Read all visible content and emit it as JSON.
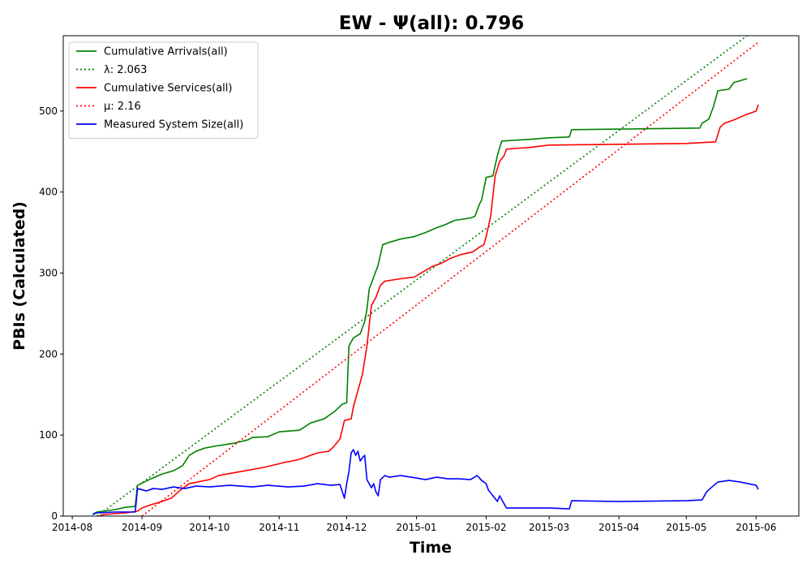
{
  "chart_data": {
    "type": "line",
    "title": "EW -  Ψ(all): 0.796",
    "xlabel": "Time",
    "ylabel": "PBIs (Calculated)",
    "xlim": [
      "2014-07-28",
      "2015-06-20"
    ],
    "ylim": [
      0,
      593
    ],
    "x_ticks": [
      "2014-08",
      "2014-09",
      "2014-10",
      "2014-11",
      "2014-12",
      "2015-01",
      "2015-02",
      "2015-03",
      "2015-04",
      "2015-05",
      "2015-06"
    ],
    "y_ticks": [
      0,
      100,
      200,
      300,
      400,
      500
    ],
    "grid": false,
    "legend_position": "top-left",
    "series": [
      {
        "name": "Cumulative Arrivals(all)",
        "style": "solid",
        "color": "#008000",
        "points": [
          [
            "2014-08-10",
            2
          ],
          [
            "2014-08-12",
            5
          ],
          [
            "2014-08-20",
            8
          ],
          [
            "2014-08-25",
            11
          ],
          [
            "2014-08-29",
            12
          ],
          [
            "2014-08-30",
            38
          ],
          [
            "2014-09-02",
            42
          ],
          [
            "2014-09-05",
            46
          ],
          [
            "2014-09-10",
            52
          ],
          [
            "2014-09-15",
            56
          ],
          [
            "2014-09-19",
            62
          ],
          [
            "2014-09-22",
            75
          ],
          [
            "2014-09-25",
            80
          ],
          [
            "2014-09-29",
            84
          ],
          [
            "2014-10-05",
            87
          ],
          [
            "2014-10-12",
            90
          ],
          [
            "2014-10-18",
            94
          ],
          [
            "2014-10-20",
            97
          ],
          [
            "2014-10-27",
            98
          ],
          [
            "2014-11-01",
            104
          ],
          [
            "2014-11-10",
            106
          ],
          [
            "2014-11-15",
            115
          ],
          [
            "2014-11-21",
            120
          ],
          [
            "2014-11-26",
            130
          ],
          [
            "2014-11-29",
            138
          ],
          [
            "2014-12-01",
            140
          ],
          [
            "2014-12-02",
            210
          ],
          [
            "2014-12-04",
            220
          ],
          [
            "2014-12-07",
            225
          ],
          [
            "2014-12-09",
            240
          ],
          [
            "2014-12-10",
            255
          ],
          [
            "2014-12-11",
            280
          ],
          [
            "2014-12-13",
            295
          ],
          [
            "2014-12-15",
            310
          ],
          [
            "2014-12-17",
            335
          ],
          [
            "2014-12-20",
            338
          ],
          [
            "2014-12-25",
            342
          ],
          [
            "2014-12-31",
            345
          ],
          [
            "2015-01-05",
            350
          ],
          [
            "2015-01-10",
            356
          ],
          [
            "2015-01-14",
            360
          ],
          [
            "2015-01-18",
            365
          ],
          [
            "2015-01-25",
            368
          ],
          [
            "2015-01-27",
            370
          ],
          [
            "2015-01-29",
            385
          ],
          [
            "2015-01-30",
            390
          ],
          [
            "2015-02-01",
            418
          ],
          [
            "2015-02-04",
            420
          ],
          [
            "2015-02-06",
            445
          ],
          [
            "2015-02-07",
            455
          ],
          [
            "2015-02-08",
            463
          ],
          [
            "2015-02-20",
            465
          ],
          [
            "2015-03-01",
            467
          ],
          [
            "2015-03-10",
            468
          ],
          [
            "2015-03-11",
            477
          ],
          [
            "2015-04-10",
            478
          ],
          [
            "2015-05-07",
            479
          ],
          [
            "2015-05-08",
            485
          ],
          [
            "2015-05-11",
            490
          ],
          [
            "2015-05-13",
            505
          ],
          [
            "2015-05-15",
            525
          ],
          [
            "2015-05-20",
            527
          ],
          [
            "2015-05-22",
            535
          ],
          [
            "2015-05-28",
            540
          ]
        ]
      },
      {
        "name": "λ: 2.063",
        "style": "dotted",
        "color": "#008000",
        "points": [
          [
            "2014-08-12",
            0
          ],
          [
            "2015-05-28",
            593
          ]
        ]
      },
      {
        "name": "Cumulative Services(all)",
        "style": "solid",
        "color": "#ff0000",
        "points": [
          [
            "2014-08-13",
            0
          ],
          [
            "2014-08-15",
            2
          ],
          [
            "2014-08-25",
            4
          ],
          [
            "2014-08-30",
            6
          ],
          [
            "2014-09-01",
            10
          ],
          [
            "2014-09-05",
            14
          ],
          [
            "2014-09-10",
            18
          ],
          [
            "2014-09-14",
            22
          ],
          [
            "2014-09-18",
            32
          ],
          [
            "2014-09-22",
            40
          ],
          [
            "2014-10-01",
            45
          ],
          [
            "2014-10-05",
            50
          ],
          [
            "2014-10-15",
            55
          ],
          [
            "2014-10-25",
            60
          ],
          [
            "2014-11-03",
            66
          ],
          [
            "2014-11-10",
            70
          ],
          [
            "2014-11-18",
            78
          ],
          [
            "2014-11-23",
            80
          ],
          [
            "2014-11-25",
            85
          ],
          [
            "2014-11-28",
            95
          ],
          [
            "2014-11-30",
            118
          ],
          [
            "2014-12-03",
            120
          ],
          [
            "2014-12-04",
            135
          ],
          [
            "2014-12-06",
            155
          ],
          [
            "2014-12-08",
            175
          ],
          [
            "2014-12-10",
            210
          ],
          [
            "2014-12-12",
            260
          ],
          [
            "2014-12-14",
            270
          ],
          [
            "2014-12-16",
            285
          ],
          [
            "2014-12-18",
            290
          ],
          [
            "2014-12-25",
            293
          ],
          [
            "2014-12-31",
            295
          ],
          [
            "2015-01-03",
            300
          ],
          [
            "2015-01-08",
            308
          ],
          [
            "2015-01-12",
            312
          ],
          [
            "2015-01-16",
            318
          ],
          [
            "2015-01-21",
            323
          ],
          [
            "2015-01-26",
            326
          ],
          [
            "2015-01-29",
            332
          ],
          [
            "2015-01-31",
            335
          ],
          [
            "2015-02-01",
            345
          ],
          [
            "2015-02-03",
            370
          ],
          [
            "2015-02-05",
            420
          ],
          [
            "2015-02-07",
            438
          ],
          [
            "2015-02-09",
            445
          ],
          [
            "2015-02-10",
            453
          ],
          [
            "2015-02-20",
            455
          ],
          [
            "2015-03-01",
            458
          ],
          [
            "2015-04-01",
            459
          ],
          [
            "2015-05-01",
            460
          ],
          [
            "2015-05-14",
            462
          ],
          [
            "2015-05-16",
            480
          ],
          [
            "2015-05-18",
            485
          ],
          [
            "2015-05-23",
            490
          ],
          [
            "2015-05-27",
            495
          ],
          [
            "2015-06-01",
            500
          ],
          [
            "2015-06-02",
            508
          ]
        ]
      },
      {
        "name": "μ: 2.16",
        "style": "dotted",
        "color": "#ff0000",
        "points": [
          [
            "2014-09-01",
            0
          ],
          [
            "2015-06-02",
            585
          ]
        ]
      },
      {
        "name": "Measured System Size(all)",
        "style": "solid",
        "color": "#0000ff",
        "points": [
          [
            "2014-08-10",
            2
          ],
          [
            "2014-08-12",
            4
          ],
          [
            "2014-08-20",
            5
          ],
          [
            "2014-08-29",
            5
          ],
          [
            "2014-08-30",
            34
          ],
          [
            "2014-09-03",
            31
          ],
          [
            "2014-09-06",
            34
          ],
          [
            "2014-09-10",
            33
          ],
          [
            "2014-09-15",
            36
          ],
          [
            "2014-09-20",
            34
          ],
          [
            "2014-09-25",
            37
          ],
          [
            "2014-10-01",
            36
          ],
          [
            "2014-10-10",
            38
          ],
          [
            "2014-10-20",
            36
          ],
          [
            "2014-10-27",
            38
          ],
          [
            "2014-11-05",
            36
          ],
          [
            "2014-11-12",
            37
          ],
          [
            "2014-11-18",
            40
          ],
          [
            "2014-11-24",
            38
          ],
          [
            "2014-11-28",
            39
          ],
          [
            "2014-11-30",
            22
          ],
          [
            "2014-12-01",
            40
          ],
          [
            "2014-12-02",
            55
          ],
          [
            "2014-12-03",
            78
          ],
          [
            "2014-12-04",
            82
          ],
          [
            "2014-12-05",
            75
          ],
          [
            "2014-12-06",
            80
          ],
          [
            "2014-12-07",
            68
          ],
          [
            "2014-12-08",
            72
          ],
          [
            "2014-12-09",
            75
          ],
          [
            "2014-12-10",
            45
          ],
          [
            "2014-12-11",
            40
          ],
          [
            "2014-12-12",
            35
          ],
          [
            "2014-12-13",
            40
          ],
          [
            "2014-12-14",
            30
          ],
          [
            "2014-12-15",
            25
          ],
          [
            "2014-12-16",
            45
          ],
          [
            "2014-12-18",
            50
          ],
          [
            "2014-12-20",
            48
          ],
          [
            "2014-12-25",
            50
          ],
          [
            "2015-01-01",
            47
          ],
          [
            "2015-01-05",
            45
          ],
          [
            "2015-01-10",
            48
          ],
          [
            "2015-01-15",
            46
          ],
          [
            "2015-01-20",
            46
          ],
          [
            "2015-01-25",
            45
          ],
          [
            "2015-01-28",
            50
          ],
          [
            "2015-01-30",
            44
          ],
          [
            "2015-02-01",
            40
          ],
          [
            "2015-02-02",
            32
          ],
          [
            "2015-02-04",
            25
          ],
          [
            "2015-02-06",
            18
          ],
          [
            "2015-02-07",
            25
          ],
          [
            "2015-02-10",
            10
          ],
          [
            "2015-02-20",
            10
          ],
          [
            "2015-03-01",
            10
          ],
          [
            "2015-03-10",
            9
          ],
          [
            "2015-03-11",
            19
          ],
          [
            "2015-04-01",
            18
          ],
          [
            "2015-05-01",
            19
          ],
          [
            "2015-05-08",
            20
          ],
          [
            "2015-05-10",
            30
          ],
          [
            "2015-05-12",
            35
          ],
          [
            "2015-05-15",
            42
          ],
          [
            "2015-05-20",
            44
          ],
          [
            "2015-05-25",
            42
          ],
          [
            "2015-06-01",
            38
          ],
          [
            "2015-06-02",
            33
          ]
        ]
      }
    ]
  }
}
